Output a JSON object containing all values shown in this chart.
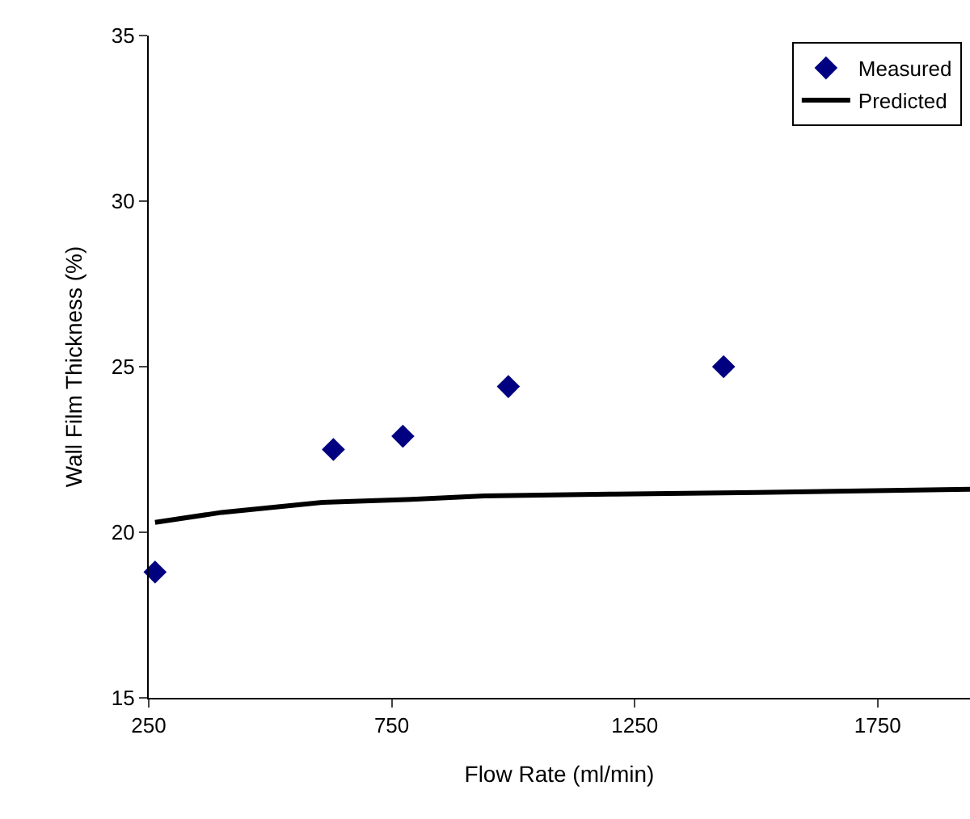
{
  "chart_data": {
    "type": "scatter",
    "xlabel": "Flow Rate (ml/min)",
    "ylabel": "Wall Film Thickness (%)",
    "xlim": [
      250,
      1940
    ],
    "xticks": [
      250,
      750,
      1250,
      1750
    ],
    "ylim": [
      15,
      35
    ],
    "yticks": [
      15,
      20,
      25,
      30,
      35
    ],
    "grid": false,
    "legend": "top right",
    "series": [
      {
        "name": "Measured",
        "marker": "diamond",
        "color": "#000080",
        "x": [
          263,
          630,
          773,
          990,
          1433
        ],
        "values": [
          18.8,
          22.5,
          22.9,
          24.4,
          25.0
        ]
      },
      {
        "name": "Predicted",
        "type": "line",
        "marker": "none",
        "line_style": "solid",
        "color": "#000000",
        "x": [
          263,
          400,
          607,
          800,
          940,
          1200,
          1500,
          1940
        ],
        "values": [
          20.3,
          20.6,
          20.9,
          21.0,
          21.1,
          21.15,
          21.2,
          21.3
        ]
      }
    ]
  }
}
